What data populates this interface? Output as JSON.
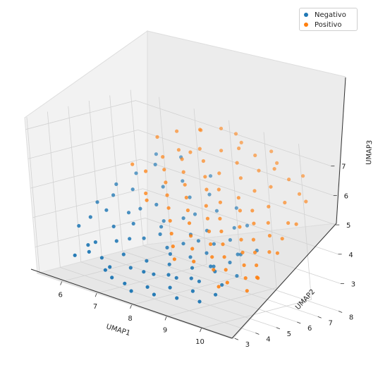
{
  "chart_data": {
    "type": "scatter",
    "projection": "3d",
    "title": "",
    "xlabel": "UMAP1",
    "ylabel": "UMAP2",
    "zlabel": "UMAP3",
    "xlim": [
      5.3,
      10.9
    ],
    "ylim": [
      2.9,
      8.2
    ],
    "zlim": [
      2.1,
      7.4
    ],
    "xticks": [
      6,
      7,
      8,
      9,
      10
    ],
    "yticks": [
      3,
      4,
      5,
      6,
      7,
      8
    ],
    "zticks": [
      3,
      4,
      5,
      6,
      7
    ],
    "grid": true,
    "legend_position": "top-right",
    "series": [
      {
        "name": "Negativo",
        "color": "#1f77b4",
        "points": [
          [
            6.2,
            3.3,
            3.0
          ],
          [
            6.5,
            3.5,
            3.2
          ],
          [
            6.8,
            3.6,
            3.1
          ],
          [
            7.0,
            3.4,
            2.8
          ],
          [
            7.3,
            3.2,
            2.7
          ],
          [
            7.6,
            3.3,
            2.6
          ],
          [
            7.9,
            3.1,
            2.5
          ],
          [
            8.2,
            3.4,
            2.7
          ],
          [
            8.5,
            3.2,
            2.6
          ],
          [
            8.8,
            3.5,
            2.9
          ],
          [
            9.1,
            3.3,
            2.7
          ],
          [
            9.4,
            3.6,
            3.0
          ],
          [
            9.7,
            3.4,
            2.8
          ],
          [
            10.0,
            3.7,
            3.1
          ],
          [
            6.4,
            4.0,
            3.4
          ],
          [
            6.9,
            4.2,
            3.6
          ],
          [
            7.2,
            4.0,
            3.3
          ],
          [
            7.5,
            3.8,
            3.0
          ],
          [
            7.8,
            4.1,
            3.3
          ],
          [
            8.1,
            3.9,
            3.0
          ],
          [
            8.4,
            4.2,
            3.4
          ],
          [
            8.7,
            4.0,
            3.1
          ],
          [
            9.0,
            4.3,
            3.5
          ],
          [
            9.3,
            4.1,
            3.2
          ],
          [
            9.6,
            4.4,
            3.6
          ],
          [
            9.9,
            4.2,
            3.3
          ],
          [
            6.0,
            4.5,
            4.0
          ],
          [
            6.3,
            4.8,
            4.3
          ],
          [
            6.6,
            4.6,
            3.9
          ],
          [
            7.0,
            4.9,
            4.1
          ],
          [
            7.4,
            4.7,
            3.8
          ],
          [
            7.7,
            5.0,
            4.0
          ],
          [
            8.0,
            4.8,
            3.7
          ],
          [
            8.3,
            5.1,
            3.9
          ],
          [
            8.6,
            4.9,
            3.6
          ],
          [
            8.9,
            5.2,
            3.8
          ],
          [
            9.2,
            5.0,
            3.5
          ],
          [
            9.5,
            5.3,
            3.7
          ],
          [
            9.8,
            5.1,
            3.4
          ],
          [
            6.1,
            5.5,
            4.6
          ],
          [
            6.5,
            5.8,
            4.9
          ],
          [
            6.8,
            5.6,
            4.4
          ],
          [
            7.1,
            5.9,
            4.6
          ],
          [
            7.4,
            5.7,
            4.2
          ],
          [
            7.8,
            6.0,
            4.4
          ],
          [
            8.1,
            5.8,
            4.0
          ],
          [
            8.4,
            6.1,
            4.2
          ],
          [
            8.7,
            5.9,
            3.9
          ],
          [
            9.0,
            6.2,
            4.1
          ],
          [
            9.4,
            6.0,
            3.8
          ],
          [
            9.7,
            6.3,
            4.0
          ],
          [
            6.2,
            6.5,
            5.2
          ],
          [
            6.6,
            6.8,
            5.6
          ],
          [
            6.9,
            6.6,
            5.0
          ],
          [
            7.3,
            6.9,
            5.3
          ],
          [
            7.6,
            6.7,
            4.9
          ],
          [
            8.0,
            7.0,
            5.1
          ],
          [
            8.3,
            6.8,
            4.7
          ],
          [
            8.7,
            7.1,
            4.9
          ],
          [
            9.1,
            6.9,
            4.5
          ],
          [
            5.8,
            5.2,
            4.3
          ],
          [
            5.7,
            4.4,
            3.6
          ],
          [
            6.3,
            3.8,
            3.3
          ],
          [
            7.2,
            3.3,
            3.0
          ],
          [
            8.0,
            3.6,
            3.1
          ],
          [
            8.6,
            3.8,
            3.2
          ],
          [
            9.2,
            3.9,
            3.3
          ],
          [
            7.1,
            4.5,
            3.7
          ],
          [
            8.2,
            4.6,
            3.6
          ],
          [
            9.3,
            4.7,
            3.6
          ],
          [
            7.5,
            5.4,
            4.1
          ],
          [
            8.5,
            5.5,
            4.0
          ],
          [
            6.7,
            5.2,
            4.3
          ],
          [
            7.9,
            6.4,
            4.5
          ],
          [
            8.9,
            6.6,
            4.4
          ],
          [
            6.4,
            7.2,
            5.8
          ],
          [
            7.0,
            7.4,
            5.9
          ],
          [
            7.7,
            7.6,
            5.5
          ],
          [
            5.9,
            6.0,
            4.8
          ],
          [
            9.5,
            5.7,
            3.9
          ]
        ]
      },
      {
        "name": "Positivo",
        "color": "#ff7f0e",
        "points": [
          [
            7.0,
            7.3,
            6.8
          ],
          [
            7.5,
            7.6,
            7.0
          ],
          [
            8.0,
            7.8,
            7.2
          ],
          [
            8.5,
            7.9,
            6.9
          ],
          [
            9.0,
            7.7,
            6.7
          ],
          [
            9.5,
            7.9,
            6.6
          ],
          [
            10.0,
            7.6,
            6.3
          ],
          [
            10.4,
            7.4,
            6.0
          ],
          [
            7.2,
            7.0,
            6.3
          ],
          [
            7.7,
            7.2,
            6.5
          ],
          [
            8.2,
            7.4,
            6.6
          ],
          [
            8.7,
            7.3,
            6.4
          ],
          [
            9.2,
            7.5,
            6.3
          ],
          [
            9.7,
            7.2,
            6.0
          ],
          [
            10.2,
            7.0,
            5.7
          ],
          [
            6.9,
            6.7,
            6.0
          ],
          [
            7.4,
            6.8,
            6.1
          ],
          [
            7.9,
            7.0,
            6.2
          ],
          [
            8.4,
            6.9,
            6.0
          ],
          [
            8.9,
            7.1,
            6.0
          ],
          [
            9.4,
            6.9,
            5.8
          ],
          [
            9.9,
            6.7,
            5.5
          ],
          [
            10.5,
            6.6,
            5.2
          ],
          [
            7.1,
            6.4,
            5.7
          ],
          [
            7.6,
            6.5,
            5.8
          ],
          [
            8.1,
            6.7,
            5.8
          ],
          [
            8.6,
            6.5,
            5.6
          ],
          [
            9.1,
            6.6,
            5.5
          ],
          [
            9.6,
            6.4,
            5.3
          ],
          [
            10.1,
            6.3,
            5.1
          ],
          [
            10.6,
            6.1,
            4.8
          ],
          [
            7.3,
            6.1,
            5.4
          ],
          [
            7.8,
            6.2,
            5.5
          ],
          [
            8.3,
            6.4,
            5.5
          ],
          [
            8.8,
            6.2,
            5.3
          ],
          [
            9.3,
            6.3,
            5.2
          ],
          [
            9.8,
            6.1,
            5.0
          ],
          [
            10.3,
            6.0,
            4.8
          ],
          [
            7.5,
            5.8,
            5.1
          ],
          [
            8.0,
            5.9,
            5.2
          ],
          [
            8.5,
            6.0,
            5.1
          ],
          [
            9.0,
            5.8,
            4.9
          ],
          [
            9.5,
            5.9,
            4.8
          ],
          [
            10.0,
            5.7,
            4.6
          ],
          [
            10.5,
            5.6,
            4.4
          ],
          [
            7.7,
            5.5,
            4.8
          ],
          [
            8.2,
            5.6,
            4.9
          ],
          [
            8.7,
            5.7,
            4.8
          ],
          [
            9.2,
            5.5,
            4.6
          ],
          [
            9.7,
            5.6,
            4.5
          ],
          [
            10.2,
            5.4,
            4.3
          ],
          [
            7.9,
            5.2,
            4.5
          ],
          [
            8.4,
            5.3,
            4.6
          ],
          [
            8.9,
            5.4,
            4.5
          ],
          [
            9.4,
            5.2,
            4.3
          ],
          [
            9.9,
            5.3,
            4.2
          ],
          [
            10.4,
            5.1,
            4.0
          ],
          [
            8.1,
            4.9,
            4.2
          ],
          [
            8.6,
            5.0,
            4.3
          ],
          [
            9.1,
            5.1,
            4.2
          ],
          [
            9.6,
            4.9,
            4.0
          ],
          [
            10.1,
            5.0,
            3.9
          ],
          [
            10.6,
            4.8,
            3.7
          ],
          [
            8.3,
            4.6,
            3.9
          ],
          [
            8.8,
            4.7,
            4.0
          ],
          [
            9.3,
            4.8,
            3.9
          ],
          [
            9.8,
            4.6,
            3.7
          ],
          [
            10.3,
            4.7,
            3.6
          ],
          [
            8.5,
            4.3,
            3.6
          ],
          [
            9.0,
            4.4,
            3.7
          ],
          [
            9.5,
            4.5,
            3.6
          ],
          [
            10.0,
            4.3,
            3.4
          ],
          [
            10.5,
            4.4,
            3.3
          ],
          [
            6.6,
            7.0,
            6.5
          ],
          [
            6.3,
            6.2,
            5.6
          ],
          [
            7.0,
            5.6,
            5.0
          ],
          [
            7.4,
            7.8,
            6.9
          ],
          [
            8.3,
            8.0,
            7.1
          ],
          [
            9.3,
            8.0,
            6.9
          ],
          [
            10.3,
            7.8,
            6.5
          ],
          [
            7.6,
            6.9,
            6.4
          ],
          [
            8.6,
            7.6,
            6.8
          ],
          [
            9.6,
            7.6,
            6.5
          ],
          [
            10.7,
            7.2,
            5.9
          ],
          [
            10.8,
            6.5,
            5.3
          ],
          [
            10.8,
            5.5,
            4.5
          ],
          [
            10.7,
            4.6,
            3.8
          ],
          [
            9.8,
            4.2,
            3.2
          ],
          [
            7.2,
            5.3,
            4.9
          ],
          [
            6.8,
            6.0,
            5.6
          ]
        ]
      }
    ]
  }
}
